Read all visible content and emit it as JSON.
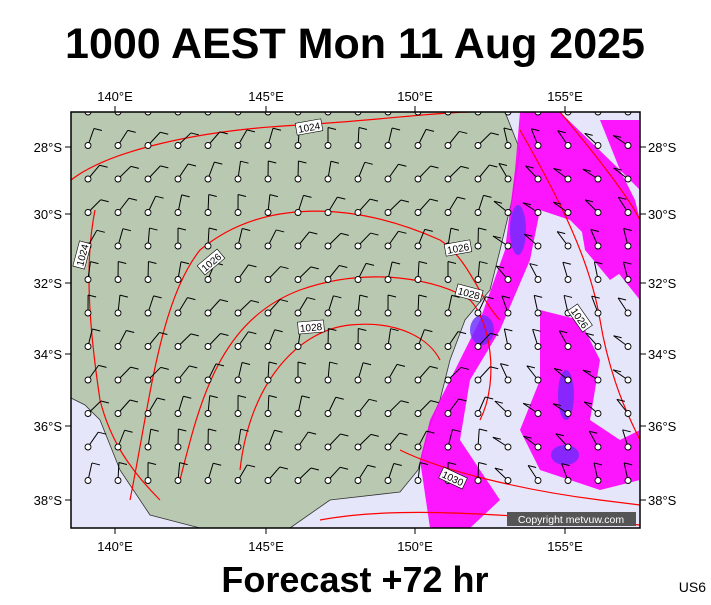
{
  "header": {
    "title": "1000 AEST Mon 11 Aug 2025"
  },
  "map": {
    "lon_labels": [
      "140°E",
      "145°E",
      "150°E",
      "155°E"
    ],
    "lat_labels": [
      "28°S",
      "30°S",
      "32°S",
      "34°S",
      "36°S",
      "38°S"
    ],
    "isobar_labels": [
      "1024",
      "1024",
      "1026",
      "1026",
      "1028",
      "1028",
      "1026",
      "1030"
    ],
    "copyright": "Copyright metvuw.com"
  },
  "footer": {
    "forecast": "Forecast +72 hr",
    "code": "US6"
  }
}
